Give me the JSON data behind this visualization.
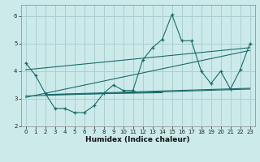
{
  "xlabel": "Humidex (Indice chaleur)",
  "background_color": "#cceaea",
  "grid_color": "#aacfcf",
  "line_color": "#1a6b6b",
  "xlim": [
    -0.5,
    23.5
  ],
  "ylim": [
    2.0,
    6.4
  ],
  "yticks": [
    2,
    3,
    4,
    5,
    6
  ],
  "xticks": [
    0,
    1,
    2,
    3,
    4,
    5,
    6,
    7,
    8,
    9,
    10,
    11,
    12,
    13,
    14,
    15,
    16,
    17,
    18,
    19,
    20,
    21,
    22,
    23
  ],
  "main_data": [
    4.3,
    3.85,
    3.2,
    2.65,
    2.65,
    2.5,
    2.5,
    2.75,
    3.2,
    3.5,
    3.3,
    3.3,
    4.4,
    4.85,
    5.15,
    6.05,
    5.1,
    5.1,
    4.0,
    3.55,
    4.0,
    3.35,
    4.05,
    5.0
  ],
  "trend_lines": [
    {
      "x": [
        0,
        23
      ],
      "y": [
        4.05,
        4.85
      ]
    },
    {
      "x": [
        2,
        23
      ],
      "y": [
        3.15,
        3.38
      ]
    },
    {
      "x": [
        0,
        23
      ],
      "y": [
        3.05,
        4.75
      ]
    },
    {
      "x": [
        0,
        23
      ],
      "y": [
        3.1,
        3.35
      ]
    },
    {
      "x": [
        2,
        14
      ],
      "y": [
        3.15,
        3.22
      ]
    }
  ]
}
